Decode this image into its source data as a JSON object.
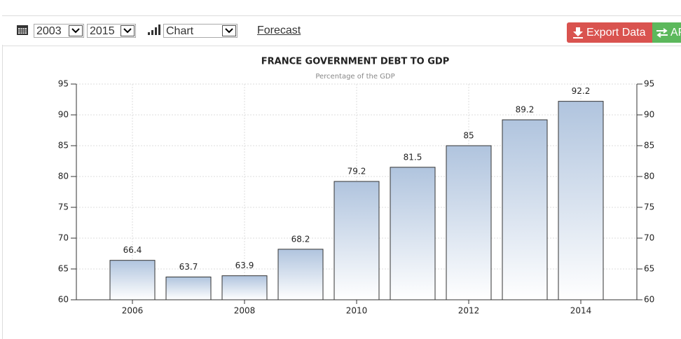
{
  "toolbar": {
    "start_year": "2003",
    "end_year": "2015",
    "view": "Chart",
    "forecast": "Forecast",
    "export": "Export Data",
    "api": "API"
  },
  "chart_data": {
    "type": "bar",
    "title": "FRANCE GOVERNMENT DEBT TO GDP",
    "subtitle": "Percentage of the GDP",
    "categories": [
      "2006",
      null,
      "2008",
      null,
      "2010",
      null,
      "2012",
      null,
      "2014"
    ],
    "values": [
      66.4,
      63.7,
      63.9,
      68.2,
      79.2,
      81.5,
      85,
      89.2,
      92.2
    ],
    "color": "#b0c4de",
    "ylim": [
      60,
      95
    ],
    "yticks": [
      60,
      65,
      70,
      75,
      80,
      85,
      90,
      95
    ],
    "y2lim": [
      60,
      95
    ],
    "y2ticks": [
      60,
      65,
      70,
      75,
      80,
      85,
      90,
      95
    ],
    "grid": true
  }
}
